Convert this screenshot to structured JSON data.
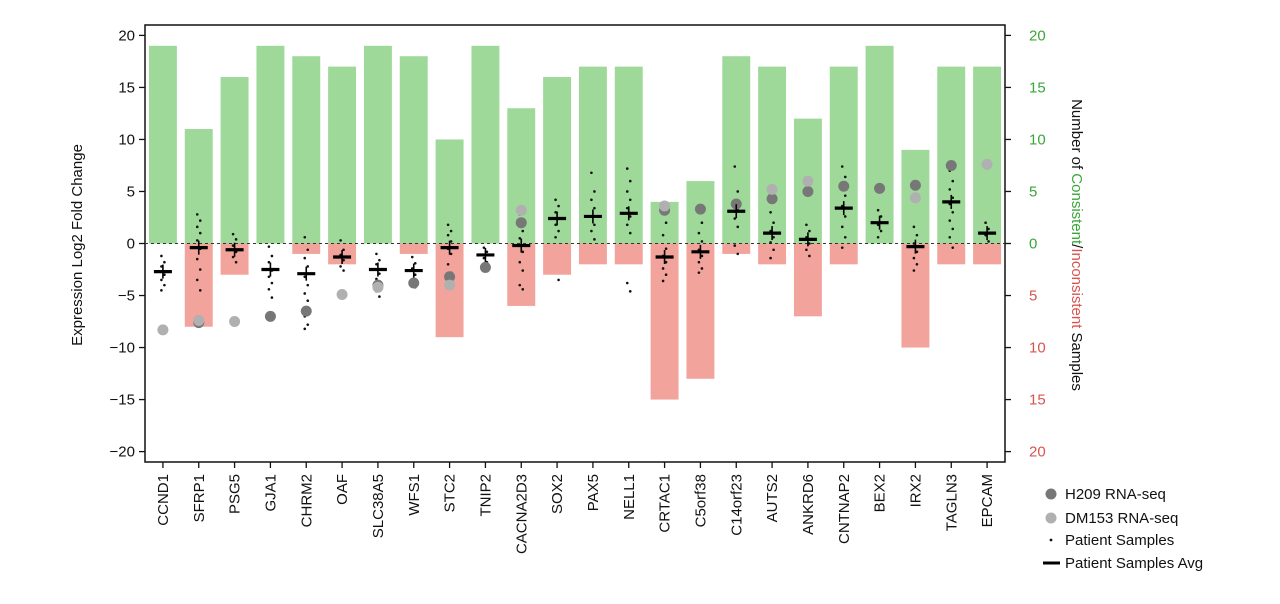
{
  "chart_data": {
    "type": "bar",
    "categories": [
      "CCND1",
      "SFRP1",
      "PSG5",
      "GJA1",
      "CHRM2",
      "OAF",
      "SLC38A5",
      "WFS1",
      "STC2",
      "TNIP2",
      "CACNA2D3",
      "SOX2",
      "PAX5",
      "NELL1",
      "CRTAC1",
      "C5orf38",
      "C14orf23",
      "AUTS2",
      "ANKRD6",
      "CNTNAP2",
      "BEX2",
      "IRX2",
      "TAGLN3",
      "EPCAM"
    ],
    "xlabel": "",
    "ylabel": "Expression Log2 Fold Change",
    "ylim": [
      -21,
      21
    ],
    "yticks": [
      -20,
      -15,
      -10,
      -5,
      0,
      5,
      10,
      15,
      20
    ],
    "y_tick_labels": [
      "−20",
      "−15",
      "−10",
      "−5",
      "0",
      "5",
      "10",
      "15",
      "20"
    ],
    "y2label_parts": [
      {
        "text": "Number of ",
        "color": "#111111"
      },
      {
        "text": "Consistent",
        "color": "#3aa63a"
      },
      {
        "text": "/",
        "color": "#111111"
      },
      {
        "text": "Inconsistent",
        "color": "#d9534f"
      },
      {
        "text": " Samples",
        "color": "#111111"
      }
    ],
    "y2ticks_upper": [
      "20",
      "15",
      "10",
      "5",
      "0"
    ],
    "y2ticks_lower": [
      "5",
      "10",
      "15",
      "20"
    ],
    "y2ticks_upper_values": [
      20,
      15,
      10,
      5,
      0
    ],
    "y2ticks_lower_values": [
      -5,
      -10,
      -15,
      -20
    ],
    "y2_upper_color": "#3aa63a",
    "y2_lower_color": "#d9534f",
    "grid": false,
    "legend_position": "bottom-right",
    "series": [
      {
        "name": "Consistent",
        "kind": "bar-up",
        "color": "#9ed99a",
        "values": [
          19,
          11,
          16,
          19,
          18,
          17,
          19,
          18,
          10,
          19,
          13,
          16,
          17,
          17,
          4,
          6,
          18,
          17,
          12,
          17,
          19,
          9,
          17,
          17
        ]
      },
      {
        "name": "Inconsistent",
        "kind": "bar-down",
        "color": "#f2a39b",
        "values": [
          0,
          8,
          3,
          0,
          1,
          2,
          0,
          1,
          9,
          0,
          6,
          3,
          2,
          2,
          15,
          13,
          1,
          2,
          7,
          2,
          0,
          10,
          2,
          2
        ]
      },
      {
        "name": "H209 RNA-seq",
        "kind": "marker",
        "color": "#777777",
        "values": [
          null,
          -7.6,
          null,
          -7.0,
          -6.5,
          null,
          -4.0,
          -3.8,
          -3.2,
          -2.3,
          2.0,
          null,
          null,
          null,
          3.2,
          3.3,
          3.8,
          4.3,
          5.0,
          5.5,
          5.3,
          5.6,
          7.5,
          null
        ]
      },
      {
        "name": "DM153 RNA-seq",
        "kind": "marker",
        "color": "#b0b0b0",
        "values": [
          -8.3,
          -7.4,
          -7.5,
          null,
          null,
          -4.9,
          -4.2,
          null,
          -4.0,
          null,
          3.2,
          null,
          null,
          null,
          3.6,
          null,
          null,
          5.2,
          6.0,
          null,
          null,
          4.4,
          null,
          7.6
        ]
      },
      {
        "name": "Patient Samples Avg",
        "kind": "avg",
        "color": "#000000",
        "values": [
          -2.7,
          -0.4,
          -0.6,
          -2.5,
          -2.9,
          -1.3,
          -2.5,
          -2.6,
          -0.4,
          -1.1,
          -0.2,
          2.4,
          2.6,
          2.9,
          -1.3,
          -0.8,
          3.1,
          1.0,
          0.4,
          3.4,
          2.0,
          -0.3,
          4.0,
          1.0
        ]
      },
      {
        "name": "Patient Samples",
        "kind": "dots",
        "color": "#111111",
        "points": [
          [
            -1.2,
            -1.8,
            -2.2,
            -3.0,
            -3.5,
            -4.0,
            -4.5
          ],
          [
            2.8,
            2.2,
            1.6,
            1.0,
            0.3,
            -0.5,
            -1.5,
            -2.5,
            -3.5,
            -4.5
          ],
          [
            0.9,
            0.4,
            -0.2,
            -0.8,
            -1.3,
            -1.8
          ],
          [
            -0.3,
            -1.2,
            -1.8,
            -2.6,
            -3.2,
            -3.8,
            -4.4,
            -5.2
          ],
          [
            0.6,
            -0.6,
            -1.4,
            -2.2,
            -3.2,
            -4.0,
            -4.8,
            -5.5,
            -7.0,
            -7.8,
            -8.2
          ],
          [
            0.3,
            -0.6,
            -1.1,
            -1.6,
            -2.2,
            -2.6
          ],
          [
            -1.0,
            -1.6,
            -2.0,
            -2.9,
            -3.4,
            -4.0,
            -4.6,
            -5.1
          ],
          [
            -1.3,
            -1.9,
            -2.4,
            -3.0,
            -3.6,
            -4.2
          ],
          [
            1.8,
            1.2,
            0.8,
            0.2,
            -0.5,
            -1.0,
            -2.0,
            -2.8,
            -3.8
          ],
          [
            -0.4,
            -0.8,
            -1.4,
            -1.8
          ],
          [
            2.8,
            1.2,
            0.5,
            -0.8,
            -1.8,
            -2.6,
            -4.0,
            -4.4
          ],
          [
            4.2,
            3.6,
            3.0,
            2.4,
            1.8,
            1.2,
            0.6,
            -3.5
          ],
          [
            6.8,
            5.0,
            4.2,
            3.4,
            2.6,
            1.8,
            1.2,
            0.4
          ],
          [
            7.2,
            6.0,
            5.0,
            4.2,
            3.4,
            2.6,
            1.8,
            1.0,
            -3.8,
            -4.6
          ],
          [
            3.6,
            2.0,
            0.8,
            -0.5,
            -1.2,
            -1.8,
            -2.4,
            -3.0,
            -3.6
          ],
          [
            3.4,
            2.0,
            1.0,
            0.2,
            -0.6,
            -1.2,
            -1.8,
            -2.4,
            -2.8
          ],
          [
            7.4,
            5.0,
            4.0,
            3.2,
            2.4,
            1.6,
            -0.2,
            -1.0
          ],
          [
            3.0,
            2.0,
            1.2,
            0.6,
            0.1,
            -0.6,
            -1.4
          ],
          [
            1.8,
            1.2,
            0.6,
            0.0,
            -0.6,
            -1.2
          ],
          [
            7.4,
            6.4,
            5.4,
            4.6,
            3.6,
            2.6,
            1.6,
            0.6,
            -0.4
          ],
          [
            3.2,
            2.6,
            1.8,
            1.2,
            0.6
          ],
          [
            1.6,
            0.8,
            0.0,
            -0.8,
            -1.4,
            -2.0,
            -2.6
          ],
          [
            7.0,
            6.0,
            5.2,
            4.4,
            3.8,
            3.0,
            2.2,
            1.4,
            0.6,
            -0.4
          ],
          [
            2.0,
            1.4,
            0.8,
            0.2
          ]
        ]
      }
    ]
  },
  "legend": {
    "items": [
      {
        "label": "H209 RNA-seq",
        "marker": "circle",
        "color": "#777777"
      },
      {
        "label": "DM153 RNA-seq",
        "marker": "circle",
        "color": "#b0b0b0"
      },
      {
        "label": "Patient Samples",
        "marker": "dot",
        "color": "#111111"
      },
      {
        "label": "Patient Samples Avg",
        "marker": "line",
        "color": "#000000"
      }
    ]
  }
}
